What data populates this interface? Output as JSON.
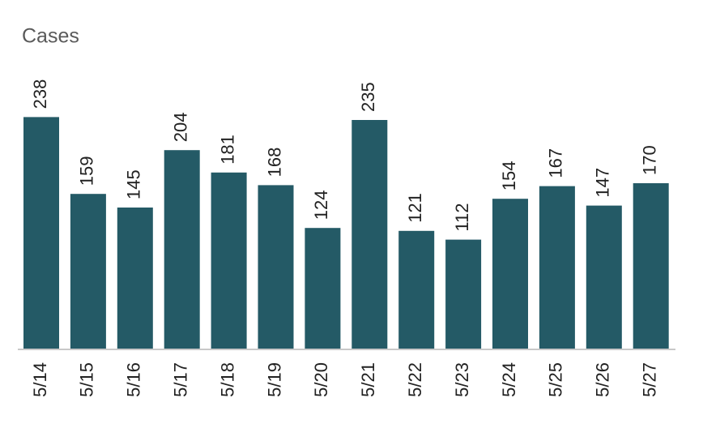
{
  "chart_data": {
    "type": "bar",
    "title": "Cases",
    "categories": [
      "5/14",
      "5/15",
      "5/16",
      "5/17",
      "5/18",
      "5/19",
      "5/20",
      "5/21",
      "5/22",
      "5/23",
      "5/24",
      "5/25",
      "5/26",
      "5/27"
    ],
    "values": [
      238,
      159,
      145,
      204,
      181,
      168,
      124,
      235,
      121,
      112,
      154,
      167,
      147,
      170
    ],
    "color": "#245a66"
  }
}
